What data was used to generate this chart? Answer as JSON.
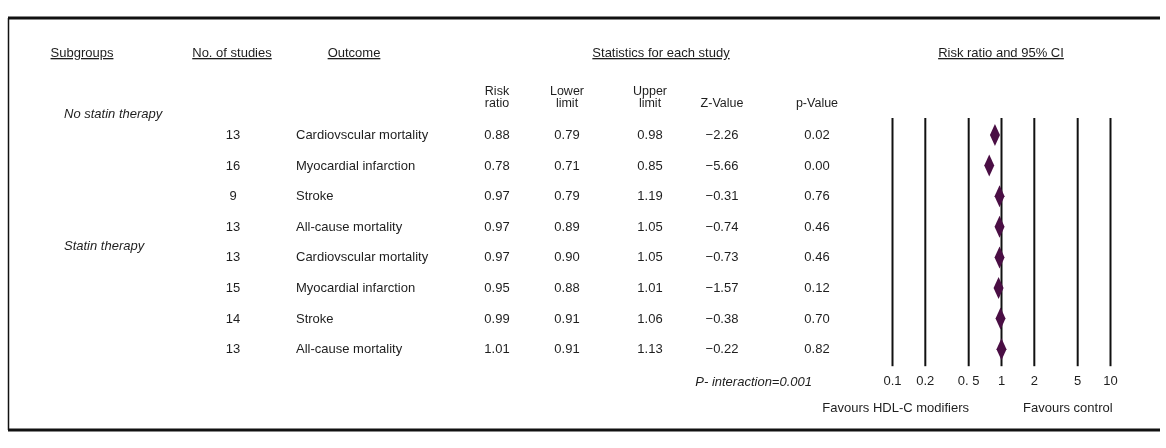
{
  "chart_data": {
    "type": "scatter",
    "orientation": "horizontal",
    "title": "Risk ratio and 95% CI",
    "categories": [
      null,
      null,
      null,
      null,
      null,
      null,
      null,
      null
    ],
    "values": [
      0.88,
      0.78,
      0.97,
      0.97,
      0.97,
      0.95,
      0.99,
      1.01
    ],
    "color": "#4a0e44",
    "marker": "diamond",
    "data_labels": true,
    "log": "x",
    "grid": "x",
    "xlim": [
      0.1,
      10
    ],
    "xticks": [
      0.1,
      0.2,
      {
        "value": 0.5,
        "label": "0. 5"
      },
      1,
      2,
      5,
      10
    ],
    "annotations": [
      "Subgroups",
      "No. of studies",
      "Outcome",
      "Statistics for each study",
      "Risk ratio",
      "Lower limit",
      "Upper limit",
      "Z-Value",
      "p-Value",
      "No statin therapy",
      "Statin therapy",
      "13",
      "16",
      "9",
      "13",
      "13",
      "15",
      "14",
      "13",
      "Cardiovscular mortality",
      "Myocardial infarction",
      "Stroke",
      "All-cause mortality",
      "Cardiovscular mortality",
      "Myocardial infarction",
      "Stroke",
      "All-cause mortality",
      "0.79",
      "0.71",
      "0.79",
      "0.89",
      "0.90",
      "0.88",
      "0.91",
      "0.91",
      "0.98",
      "0.85",
      "1.19",
      "1.05",
      "1.05",
      "1.01",
      "1.06",
      "1.13",
      "−2.26",
      "−5.66",
      "−0.31",
      "−0.74",
      "−0.73",
      "−1.57",
      "−0.38",
      "−0.22",
      "0.02",
      "0.00",
      "0.76",
      "0.46",
      "0.46",
      "0.12",
      "0.70",
      "0.82",
      "P- interaction=0.001",
      "Favours HDL-C modifiers",
      "Favours control"
    ]
  }
}
